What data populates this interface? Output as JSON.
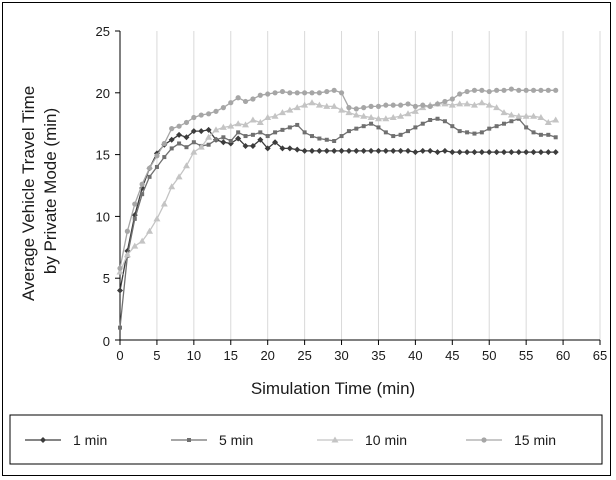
{
  "chart_data": {
    "type": "line",
    "xlabel": "Simulation Time (min)",
    "ylabel_lines": [
      "Average Vehicle Travel Time",
      "by Private Mode (min)"
    ],
    "xlim": [
      0,
      65
    ],
    "ylim": [
      0,
      25
    ],
    "x_ticks": [
      "0",
      "5",
      "10",
      "15",
      "20",
      "25",
      "30",
      "35",
      "40",
      "45",
      "50",
      "55",
      "60",
      "65"
    ],
    "y_ticks": [
      "0",
      "5",
      "10",
      "15",
      "20",
      "25"
    ],
    "grid": "vertical",
    "legend": "bottom",
    "series": [
      {
        "name": "1 min",
        "color": "#3c3c3c",
        "marker": "diamond",
        "x": [
          0,
          1,
          2,
          3,
          4,
          5,
          6,
          7,
          8,
          9,
          10,
          11,
          12,
          13,
          14,
          15,
          16,
          17,
          18,
          19,
          20,
          21,
          22,
          23,
          24,
          25,
          26,
          27,
          28,
          29,
          30,
          31,
          32,
          33,
          34,
          35,
          36,
          37,
          38,
          39,
          40,
          41,
          42,
          43,
          44,
          45,
          46,
          47,
          48,
          49,
          50,
          51,
          52,
          53,
          54,
          55,
          56,
          57,
          58,
          59
        ],
        "y": [
          4.0,
          7.2,
          10.1,
          12.3,
          13.9,
          15.1,
          15.8,
          16.2,
          16.6,
          16.4,
          16.9,
          16.9,
          17.0,
          16.2,
          16.0,
          15.9,
          16.3,
          15.7,
          15.7,
          16.2,
          15.5,
          16.0,
          15.5,
          15.5,
          15.4,
          15.3,
          15.3,
          15.3,
          15.3,
          15.3,
          15.3,
          15.3,
          15.3,
          15.3,
          15.3,
          15.3,
          15.3,
          15.3,
          15.3,
          15.3,
          15.2,
          15.3,
          15.3,
          15.2,
          15.3,
          15.2,
          15.2,
          15.2,
          15.2,
          15.2,
          15.2,
          15.2,
          15.2,
          15.2,
          15.2,
          15.2,
          15.2,
          15.2,
          15.2,
          15.2
        ]
      },
      {
        "name": "5 min",
        "color": "#707070",
        "marker": "square",
        "x": [
          0,
          1,
          2,
          3,
          4,
          5,
          6,
          7,
          8,
          9,
          10,
          11,
          12,
          13,
          14,
          15,
          16,
          17,
          18,
          19,
          20,
          21,
          22,
          23,
          24,
          25,
          26,
          27,
          28,
          29,
          30,
          31,
          32,
          33,
          34,
          35,
          36,
          37,
          38,
          39,
          40,
          41,
          42,
          43,
          44,
          45,
          46,
          47,
          48,
          49,
          50,
          51,
          52,
          53,
          54,
          55,
          56,
          57,
          58,
          59
        ],
        "y": [
          1.0,
          6.8,
          9.8,
          11.8,
          13.2,
          14.0,
          14.8,
          15.5,
          15.9,
          15.6,
          16.0,
          15.7,
          15.8,
          16.2,
          16.4,
          16.1,
          16.8,
          16.5,
          16.6,
          16.8,
          16.5,
          16.8,
          17.0,
          17.2,
          17.4,
          16.8,
          16.5,
          16.3,
          16.2,
          16.1,
          16.5,
          16.9,
          17.1,
          17.3,
          17.5,
          17.2,
          16.8,
          16.5,
          16.6,
          16.9,
          17.2,
          17.5,
          17.8,
          17.9,
          17.7,
          17.3,
          16.9,
          16.8,
          16.7,
          16.8,
          17.1,
          17.3,
          17.5,
          17.7,
          17.9,
          17.2,
          16.8,
          16.6,
          16.6,
          16.4
        ]
      },
      {
        "name": "10 min",
        "color": "#c4c4c4",
        "marker": "triangle",
        "x": [
          0,
          1,
          2,
          3,
          4,
          5,
          6,
          7,
          8,
          9,
          10,
          11,
          12,
          13,
          14,
          15,
          16,
          17,
          18,
          19,
          20,
          21,
          22,
          23,
          24,
          25,
          26,
          27,
          28,
          29,
          30,
          31,
          32,
          33,
          34,
          35,
          36,
          37,
          38,
          39,
          40,
          41,
          42,
          43,
          44,
          45,
          46,
          47,
          48,
          49,
          50,
          51,
          52,
          53,
          54,
          55,
          56,
          57,
          58,
          59
        ],
        "y": [
          5.5,
          6.9,
          7.6,
          8.0,
          8.8,
          9.8,
          11.0,
          12.4,
          13.2,
          14.1,
          15.2,
          15.6,
          16.4,
          17.0,
          17.2,
          17.3,
          17.5,
          17.4,
          17.8,
          17.6,
          18.0,
          18.1,
          18.4,
          18.6,
          18.8,
          19.0,
          19.2,
          19.0,
          18.9,
          18.9,
          18.6,
          18.4,
          18.2,
          18.1,
          18.0,
          17.9,
          17.9,
          18.0,
          18.1,
          18.3,
          18.5,
          18.8,
          19.0,
          19.1,
          19.1,
          19.0,
          19.1,
          19.1,
          19.0,
          19.2,
          19.0,
          18.8,
          18.4,
          18.2,
          18.1,
          18.1,
          18.1,
          18.0,
          17.6,
          17.8
        ]
      },
      {
        "name": "15 min",
        "color": "#a6a6a6",
        "marker": "circle",
        "x": [
          0,
          1,
          2,
          3,
          4,
          5,
          6,
          7,
          8,
          9,
          10,
          11,
          12,
          13,
          14,
          15,
          16,
          17,
          18,
          19,
          20,
          21,
          22,
          23,
          24,
          25,
          26,
          27,
          28,
          29,
          30,
          31,
          32,
          33,
          34,
          35,
          36,
          37,
          38,
          39,
          40,
          41,
          42,
          43,
          44,
          45,
          46,
          47,
          48,
          49,
          50,
          51,
          52,
          53,
          54,
          55,
          56,
          57,
          58,
          59
        ],
        "y": [
          5.8,
          8.8,
          11.0,
          12.6,
          13.9,
          14.9,
          15.9,
          17.1,
          17.3,
          17.6,
          18.0,
          18.2,
          18.3,
          18.5,
          18.8,
          19.2,
          19.6,
          19.3,
          19.5,
          19.8,
          19.9,
          20.0,
          20.1,
          20.0,
          20.0,
          20.0,
          20.0,
          20.0,
          20.1,
          20.2,
          20.0,
          18.8,
          18.7,
          18.8,
          18.9,
          18.9,
          19.0,
          19.0,
          19.0,
          19.1,
          18.9,
          19.0,
          18.9,
          19.1,
          19.3,
          19.5,
          19.9,
          20.1,
          20.2,
          20.2,
          20.1,
          20.2,
          20.2,
          20.3,
          20.2,
          20.2,
          20.2,
          20.2,
          20.2,
          20.2
        ]
      }
    ]
  }
}
